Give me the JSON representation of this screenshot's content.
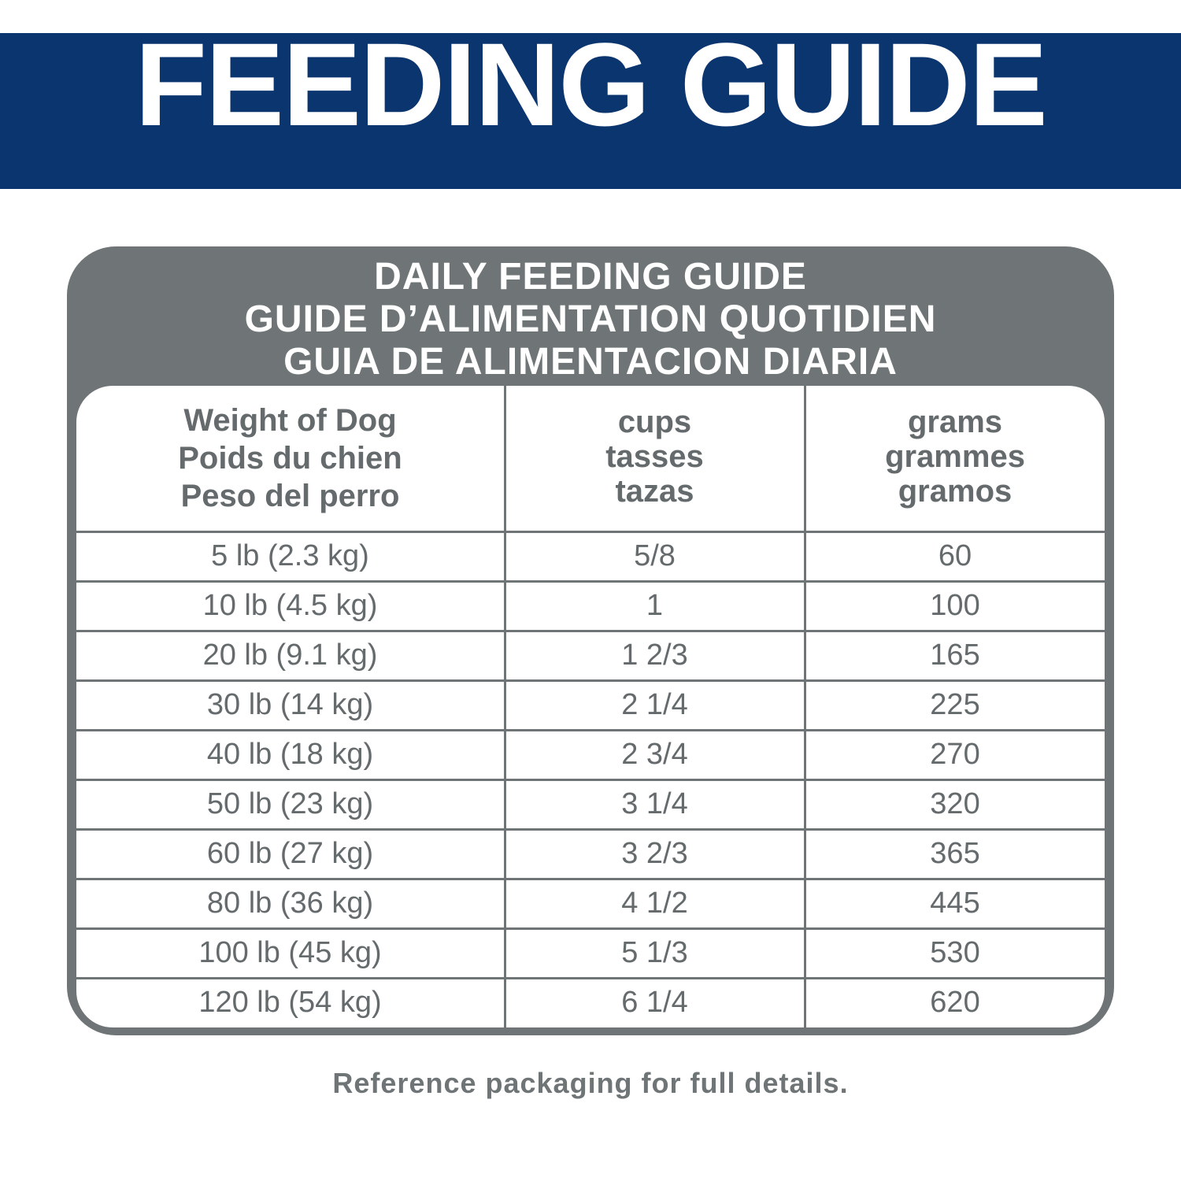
{
  "header": {
    "title": "FEEDING GUIDE"
  },
  "table": {
    "title_lines": [
      "DAILY FEEDING GUIDE",
      "GUIDE D’ALIMENTATION QUOTIDIEN",
      "GUIA DE ALIMENTACION DIARIA"
    ],
    "columns": [
      [
        "Weight of Dog",
        "Poids du chien",
        "Peso del perro"
      ],
      [
        "cups",
        "tasses",
        "tazas"
      ],
      [
        "grams",
        "grammes",
        "gramos"
      ]
    ],
    "rows": [
      [
        "5 lb (2.3 kg)",
        "5/8",
        60
      ],
      [
        "10 lb (4.5 kg)",
        "1",
        100
      ],
      [
        "20 lb (9.1 kg)",
        "1 2/3",
        165
      ],
      [
        "30 lb (14 kg)",
        "2 1/4",
        225
      ],
      [
        "40 lb (18 kg)",
        "2 3/4",
        270
      ],
      [
        "50 lb (23 kg)",
        "3 1/4",
        320
      ],
      [
        "60 lb (27 kg)",
        "3 2/3",
        365
      ],
      [
        "80 lb (36 kg)",
        "4 1/2",
        445
      ],
      [
        "100 lb (45 kg)",
        "5 1/3",
        530
      ],
      [
        "120 lb (54 kg)",
        "6 1/4",
        620
      ]
    ]
  },
  "footer": "Reference packaging for full details."
}
